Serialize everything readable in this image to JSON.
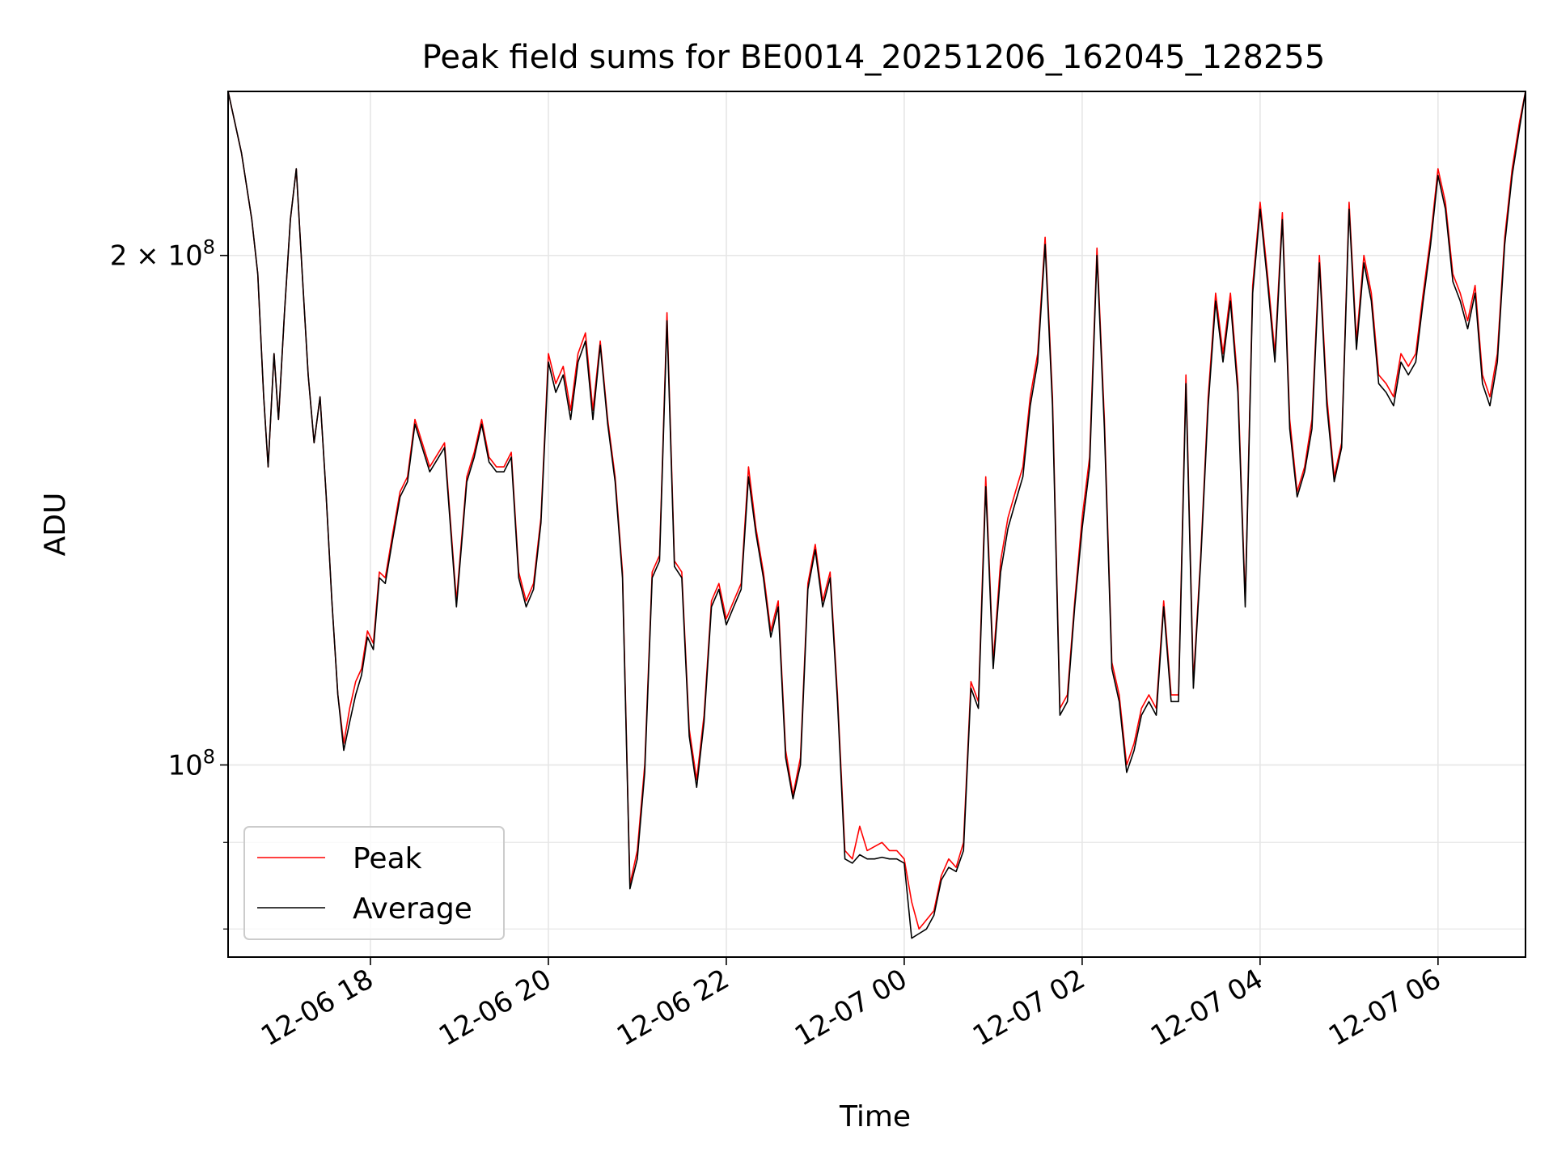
{
  "chart_data": {
    "type": "line",
    "title": "Peak field sums for BE0014_20251206_162045_128255",
    "xlabel": "Time",
    "ylabel": "ADU",
    "x_scale": "time",
    "y_scale": "log",
    "xlim": [
      "2025-12-06 16:24",
      "2025-12-07 06:59"
    ],
    "ylim": [
      77000000,
      250000000
    ],
    "x_ticks": [
      {
        "t": "2025-12-06 18:00",
        "label": "12-06 18"
      },
      {
        "t": "2025-12-06 20:00",
        "label": "12-06 20"
      },
      {
        "t": "2025-12-06 22:00",
        "label": "12-06 22"
      },
      {
        "t": "2025-12-07 00:00",
        "label": "12-07 00"
      },
      {
        "t": "2025-12-07 02:00",
        "label": "12-07 02"
      },
      {
        "t": "2025-12-07 04:00",
        "label": "12-07 04"
      },
      {
        "t": "2025-12-07 06:00",
        "label": "12-07 06"
      }
    ],
    "y_ticks": [
      {
        "value": 100000000,
        "base": "10",
        "exp": "8"
      },
      {
        "value": 200000000,
        "base": "2 × 10",
        "exp": "8"
      }
    ],
    "y_minor_ticks": [
      80000000,
      90000000
    ],
    "grid": true,
    "legend": "lower-left",
    "x": [
      "2025-12-06 16:24",
      "2025-12-06 16:33",
      "2025-12-06 16:40",
      "2025-12-06 16:44",
      "2025-12-06 16:48",
      "2025-12-06 16:51",
      "2025-12-06 16:55",
      "2025-12-06 16:58",
      "2025-12-06 17:02",
      "2025-12-06 17:06",
      "2025-12-06 17:10",
      "2025-12-06 17:14",
      "2025-12-06 17:18",
      "2025-12-06 17:22",
      "2025-12-06 17:26",
      "2025-12-06 17:30",
      "2025-12-06 17:34",
      "2025-12-06 17:38",
      "2025-12-06 17:42",
      "2025-12-06 17:46",
      "2025-12-06 17:50",
      "2025-12-06 17:54",
      "2025-12-06 17:58",
      "2025-12-06 18:02",
      "2025-12-06 18:06",
      "2025-12-06 18:10",
      "2025-12-06 18:15",
      "2025-12-06 18:20",
      "2025-12-06 18:25",
      "2025-12-06 18:30",
      "2025-12-06 18:40",
      "2025-12-06 18:50",
      "2025-12-06 18:58",
      "2025-12-06 19:05",
      "2025-12-06 19:10",
      "2025-12-06 19:15",
      "2025-12-06 19:20",
      "2025-12-06 19:25",
      "2025-12-06 19:30",
      "2025-12-06 19:35",
      "2025-12-06 19:40",
      "2025-12-06 19:45",
      "2025-12-06 19:50",
      "2025-12-06 19:55",
      "2025-12-06 20:00",
      "2025-12-06 20:05",
      "2025-12-06 20:10",
      "2025-12-06 20:15",
      "2025-12-06 20:20",
      "2025-12-06 20:25",
      "2025-12-06 20:30",
      "2025-12-06 20:35",
      "2025-12-06 20:40",
      "2025-12-06 20:45",
      "2025-12-06 20:50",
      "2025-12-06 20:55",
      "2025-12-06 21:00",
      "2025-12-06 21:05",
      "2025-12-06 21:10",
      "2025-12-06 21:15",
      "2025-12-06 21:20",
      "2025-12-06 21:25",
      "2025-12-06 21:30",
      "2025-12-06 21:35",
      "2025-12-06 21:40",
      "2025-12-06 21:45",
      "2025-12-06 21:50",
      "2025-12-06 21:55",
      "2025-12-06 22:00",
      "2025-12-06 22:05",
      "2025-12-06 22:10",
      "2025-12-06 22:15",
      "2025-12-06 22:20",
      "2025-12-06 22:25",
      "2025-12-06 22:30",
      "2025-12-06 22:35",
      "2025-12-06 22:40",
      "2025-12-06 22:45",
      "2025-12-06 22:50",
      "2025-12-06 22:55",
      "2025-12-06 23:00",
      "2025-12-06 23:05",
      "2025-12-06 23:10",
      "2025-12-06 23:15",
      "2025-12-06 23:20",
      "2025-12-06 23:25",
      "2025-12-06 23:30",
      "2025-12-06 23:35",
      "2025-12-06 23:40",
      "2025-12-06 23:45",
      "2025-12-06 23:50",
      "2025-12-06 23:55",
      "2025-12-07 00:00",
      "2025-12-07 00:05",
      "2025-12-07 00:10",
      "2025-12-07 00:15",
      "2025-12-07 00:20",
      "2025-12-07 00:25",
      "2025-12-07 00:30",
      "2025-12-07 00:35",
      "2025-12-07 00:40",
      "2025-12-07 00:45",
      "2025-12-07 00:50",
      "2025-12-07 00:55",
      "2025-12-07 01:00",
      "2025-12-07 01:05",
      "2025-12-07 01:10",
      "2025-12-07 01:15",
      "2025-12-07 01:20",
      "2025-12-07 01:25",
      "2025-12-07 01:30",
      "2025-12-07 01:35",
      "2025-12-07 01:40",
      "2025-12-07 01:45",
      "2025-12-07 01:50",
      "2025-12-07 01:55",
      "2025-12-07 02:00",
      "2025-12-07 02:05",
      "2025-12-07 02:10",
      "2025-12-07 02:15",
      "2025-12-07 02:20",
      "2025-12-07 02:25",
      "2025-12-07 02:30",
      "2025-12-07 02:35",
      "2025-12-07 02:40",
      "2025-12-07 02:45",
      "2025-12-07 02:50",
      "2025-12-07 02:55",
      "2025-12-07 03:00",
      "2025-12-07 03:05",
      "2025-12-07 03:10",
      "2025-12-07 03:15",
      "2025-12-07 03:20",
      "2025-12-07 03:25",
      "2025-12-07 03:30",
      "2025-12-07 03:35",
      "2025-12-07 03:40",
      "2025-12-07 03:45",
      "2025-12-07 03:50",
      "2025-12-07 03:55",
      "2025-12-07 04:00",
      "2025-12-07 04:05",
      "2025-12-07 04:10",
      "2025-12-07 04:15",
      "2025-12-07 04:20",
      "2025-12-07 04:25",
      "2025-12-07 04:30",
      "2025-12-07 04:35",
      "2025-12-07 04:40",
      "2025-12-07 04:45",
      "2025-12-07 04:50",
      "2025-12-07 04:55",
      "2025-12-07 05:00",
      "2025-12-07 05:05",
      "2025-12-07 05:10",
      "2025-12-07 05:15",
      "2025-12-07 05:20",
      "2025-12-07 05:25",
      "2025-12-07 05:30",
      "2025-12-07 05:35",
      "2025-12-07 05:40",
      "2025-12-07 05:45",
      "2025-12-07 05:50",
      "2025-12-07 05:55",
      "2025-12-07 06:00",
      "2025-12-07 06:05",
      "2025-12-07 06:10",
      "2025-12-07 06:15",
      "2025-12-07 06:20",
      "2025-12-07 06:25",
      "2025-12-07 06:30",
      "2025-12-07 06:35",
      "2025-12-07 06:40",
      "2025-12-07 06:45",
      "2025-12-07 06:50",
      "2025-12-07 06:55",
      "2025-12-07 06:59"
    ],
    "series": [
      {
        "name": "Peak",
        "color": "#ff0000",
        "values": [
          250000000,
          230000000,
          210000000,
          195000000,
          165000000,
          150000000,
          175000000,
          160000000,
          185000000,
          210000000,
          225000000,
          195000000,
          170000000,
          155000000,
          165000000,
          145000000,
          125000000,
          110000000,
          103000000,
          108000000,
          112000000,
          114000000,
          120000000,
          118000000,
          130000000,
          129000000,
          137000000,
          145000000,
          148000000,
          160000000,
          150000000,
          155000000,
          125000000,
          148000000,
          153000000,
          160000000,
          152000000,
          150000000,
          150000000,
          153000000,
          130000000,
          125000000,
          128000000,
          140000000,
          175000000,
          168000000,
          172000000,
          162000000,
          175000000,
          180000000,
          162000000,
          178000000,
          160000000,
          148000000,
          130000000,
          85000000,
          89000000,
          100000000,
          130000000,
          133000000,
          185000000,
          132000000,
          130000000,
          105000000,
          98000000,
          107000000,
          125000000,
          128000000,
          122000000,
          125000000,
          128000000,
          150000000,
          138000000,
          130000000,
          120000000,
          125000000,
          102000000,
          96000000,
          101000000,
          128000000,
          135000000,
          125000000,
          130000000,
          110000000,
          89000000,
          88000000,
          92000000,
          89000000,
          89500000,
          90000000,
          89000000,
          89000000,
          88000000,
          83000000,
          80000000,
          81000000,
          82000000,
          86000000,
          88000000,
          87000000,
          90000000,
          112000000,
          109000000,
          148000000,
          115000000,
          132000000,
          140000000,
          145000000,
          150000000,
          165000000,
          175000000,
          205000000,
          165000000,
          108000000,
          110000000,
          125000000,
          140000000,
          152000000,
          202000000,
          160000000,
          115000000,
          110000000,
          100000000,
          103000000,
          108000000,
          110000000,
          108000000,
          125000000,
          110000000,
          110000000,
          170000000,
          112000000,
          133000000,
          165000000,
          190000000,
          175000000,
          190000000,
          168000000,
          125000000,
          192000000,
          215000000,
          195000000,
          175000000,
          212000000,
          160000000,
          145000000,
          150000000,
          160000000,
          200000000,
          165000000,
          148000000,
          155000000,
          215000000,
          178000000,
          200000000,
          190000000,
          170000000,
          168000000,
          165000000,
          175000000,
          172000000,
          175000000,
          190000000,
          205000000,
          225000000,
          215000000,
          195000000,
          190000000,
          183000000,
          192000000,
          170000000,
          165000000,
          175000000,
          205000000,
          225000000,
          240000000,
          250000000
        ]
      },
      {
        "name": "Average",
        "color": "#000000",
        "values": [
          250000000,
          230000000,
          210000000,
          195000000,
          165000000,
          150000000,
          175000000,
          160000000,
          185000000,
          210000000,
          225000000,
          195000000,
          170000000,
          155000000,
          165000000,
          145000000,
          125000000,
          110000000,
          102000000,
          106000000,
          110000000,
          113000000,
          119000000,
          117000000,
          129000000,
          128000000,
          136000000,
          144000000,
          147000000,
          159000000,
          149000000,
          154000000,
          124000000,
          147000000,
          152000000,
          159000000,
          151000000,
          149000000,
          149000000,
          152000000,
          129000000,
          124000000,
          127000000,
          139000000,
          173000000,
          166000000,
          170000000,
          160000000,
          173000000,
          178000000,
          160000000,
          177000000,
          159000000,
          147000000,
          129000000,
          84500000,
          88000000,
          99000000,
          129000000,
          132000000,
          183000000,
          131000000,
          129000000,
          104000000,
          97000000,
          106000000,
          124000000,
          127000000,
          121000000,
          124000000,
          127000000,
          148000000,
          137000000,
          129000000,
          119000000,
          124000000,
          101000000,
          95500000,
          100000000,
          127000000,
          134000000,
          124000000,
          129000000,
          109000000,
          88000000,
          87500000,
          88500000,
          88000000,
          88000000,
          88200000,
          88000000,
          88000000,
          87500000,
          79000000,
          79500000,
          80000000,
          81500000,
          85500000,
          87000000,
          86500000,
          89000000,
          111000000,
          108000000,
          146000000,
          114000000,
          130000000,
          138000000,
          143000000,
          148000000,
          163000000,
          173000000,
          203000000,
          163000000,
          107000000,
          109000000,
          124000000,
          138000000,
          150000000,
          200000000,
          158000000,
          114000000,
          109000000,
          99000000,
          102000000,
          107000000,
          109000000,
          107000000,
          124000000,
          109000000,
          109000000,
          168000000,
          111000000,
          132000000,
          163000000,
          188000000,
          173000000,
          188000000,
          166000000,
          124000000,
          190000000,
          213000000,
          193000000,
          173000000,
          210000000,
          158000000,
          144000000,
          149000000,
          158000000,
          198000000,
          163000000,
          147000000,
          154000000,
          213000000,
          176000000,
          198000000,
          188000000,
          168000000,
          166000000,
          163000000,
          173000000,
          170000000,
          173000000,
          188000000,
          203000000,
          223000000,
          213000000,
          193000000,
          188000000,
          181000000,
          190000000,
          168000000,
          163000000,
          173000000,
          203000000,
          223000000,
          238000000,
          250000000
        ]
      }
    ]
  }
}
